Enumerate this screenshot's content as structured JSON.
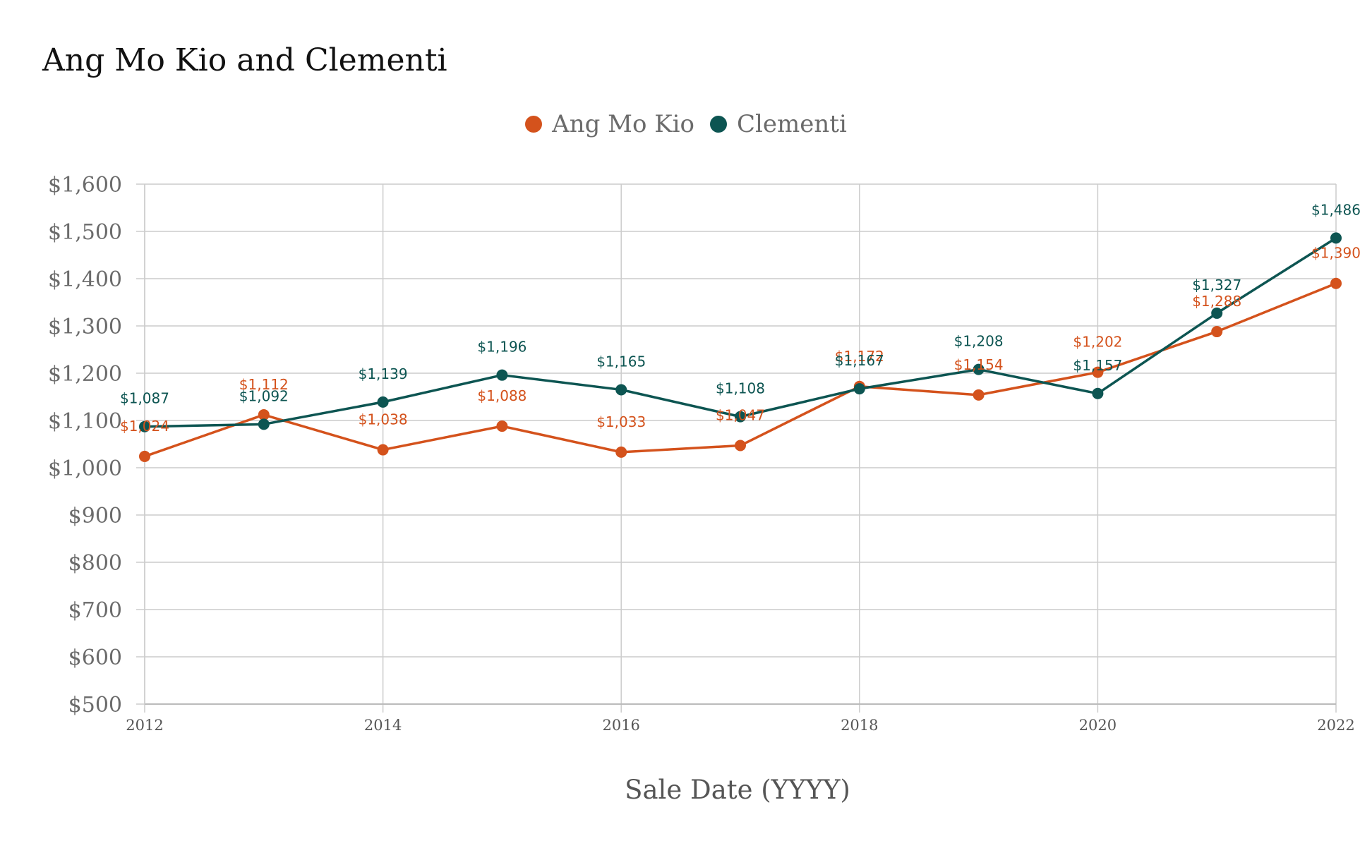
{
  "chart_data": {
    "type": "line",
    "title": "Ang Mo Kio and Clementi",
    "xlabel": "Sale Date (YYYY)",
    "ylabel": "",
    "x": [
      2012,
      2013,
      2014,
      2015,
      2016,
      2017,
      2018,
      2019,
      2020,
      2021,
      2022
    ],
    "x_tick_labels": [
      "2012",
      "2014",
      "2016",
      "2018",
      "2020",
      "2022"
    ],
    "x_tick_values": [
      2012,
      2014,
      2016,
      2018,
      2020,
      2022
    ],
    "xlim": [
      2012,
      2022
    ],
    "y_tick_labels": [
      "$500",
      "$600",
      "$700",
      "$800",
      "$900",
      "$1,000",
      "$1,100",
      "$1,200",
      "$1,300",
      "$1,400",
      "$1,500",
      "$1,600"
    ],
    "y_tick_values": [
      500,
      600,
      700,
      800,
      900,
      1000,
      1100,
      1200,
      1300,
      1400,
      1500,
      1600
    ],
    "ylim": [
      500,
      1600
    ],
    "grid": true,
    "legend_position": "top-center",
    "series": [
      {
        "name": "Ang Mo Kio",
        "color": "#d4521c",
        "values": [
          1024,
          1112,
          1038,
          1088,
          1033,
          1047,
          1172,
          1154,
          1202,
          1288,
          1390
        ],
        "labels": [
          "$1,024",
          "$1,112",
          "$1,038",
          "$1,088",
          "$1,033",
          "$1,047",
          "$1,172",
          "$1,154",
          "$1,202",
          "$1,288",
          "$1,390"
        ],
        "label_position": [
          "below",
          "above",
          "below",
          "above",
          "below",
          "below",
          "above",
          "above",
          "above",
          "above",
          "below"
        ]
      },
      {
        "name": "Clementi",
        "color": "#0d5552",
        "values": [
          1087,
          1092,
          1139,
          1196,
          1165,
          1108,
          1167,
          1208,
          1157,
          1327,
          1486
        ],
        "labels": [
          "$1,087",
          "$1,092",
          "$1,139",
          "$1,196",
          "$1,165",
          "$1,108",
          "$1,167",
          "$1,208",
          "$1,157",
          "$1,327",
          "$1,486"
        ],
        "label_position": [
          "above",
          "above",
          "above",
          "above",
          "above",
          "above",
          "above",
          "above",
          "above",
          "above",
          "above"
        ]
      }
    ]
  }
}
